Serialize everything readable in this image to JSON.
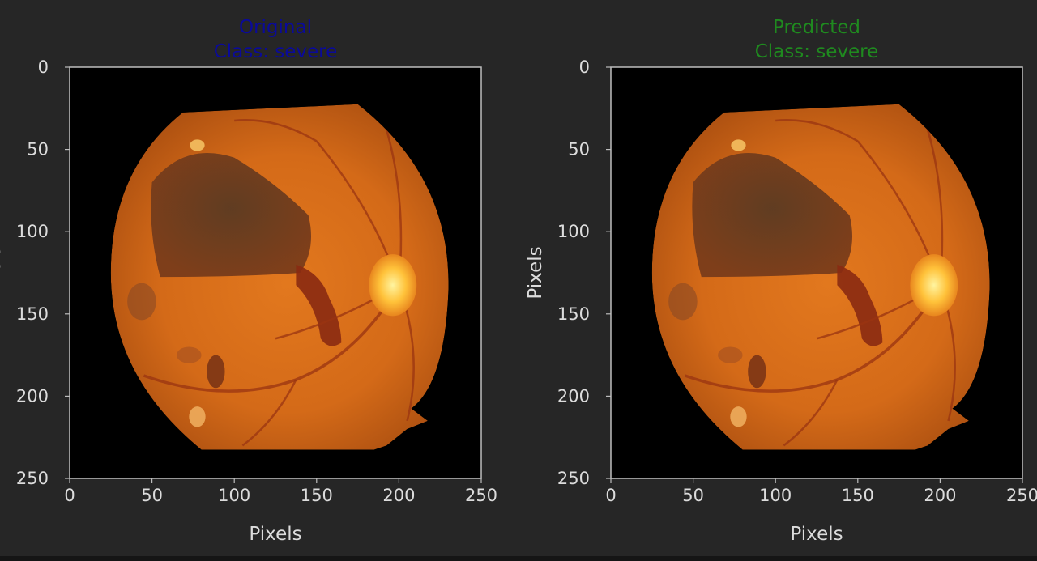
{
  "colors": {
    "background": "#262626",
    "axis": "#bdbdbd",
    "tick_text": "#dcdcdc",
    "original_title": "#0a0a9a",
    "predicted_title": "#1f8a1f",
    "image_background": "#000000"
  },
  "chart_data": [
    {
      "type": "image",
      "title_lines": [
        "Original",
        "Class: severe"
      ],
      "title_color": "#0a0a9a",
      "xlabel": "Pixels",
      "ylabel": "Pixels",
      "xlim": [
        0,
        250
      ],
      "ylim": [
        250,
        0
      ],
      "xticks": [
        0,
        50,
        100,
        150,
        200,
        250
      ],
      "yticks": [
        0,
        50,
        100,
        150,
        200,
        250
      ],
      "image": "retinal-fundus-photo"
    },
    {
      "type": "image",
      "title_lines": [
        "Predicted",
        "Class: severe"
      ],
      "title_color": "#1f8a1f",
      "xlabel": "Pixels",
      "ylabel": "Pixels",
      "xlim": [
        0,
        250
      ],
      "ylim": [
        250,
        0
      ],
      "xticks": [
        0,
        50,
        100,
        150,
        200,
        250
      ],
      "yticks": [
        0,
        50,
        100,
        150,
        200,
        250
      ],
      "image": "retinal-fundus-photo"
    }
  ]
}
